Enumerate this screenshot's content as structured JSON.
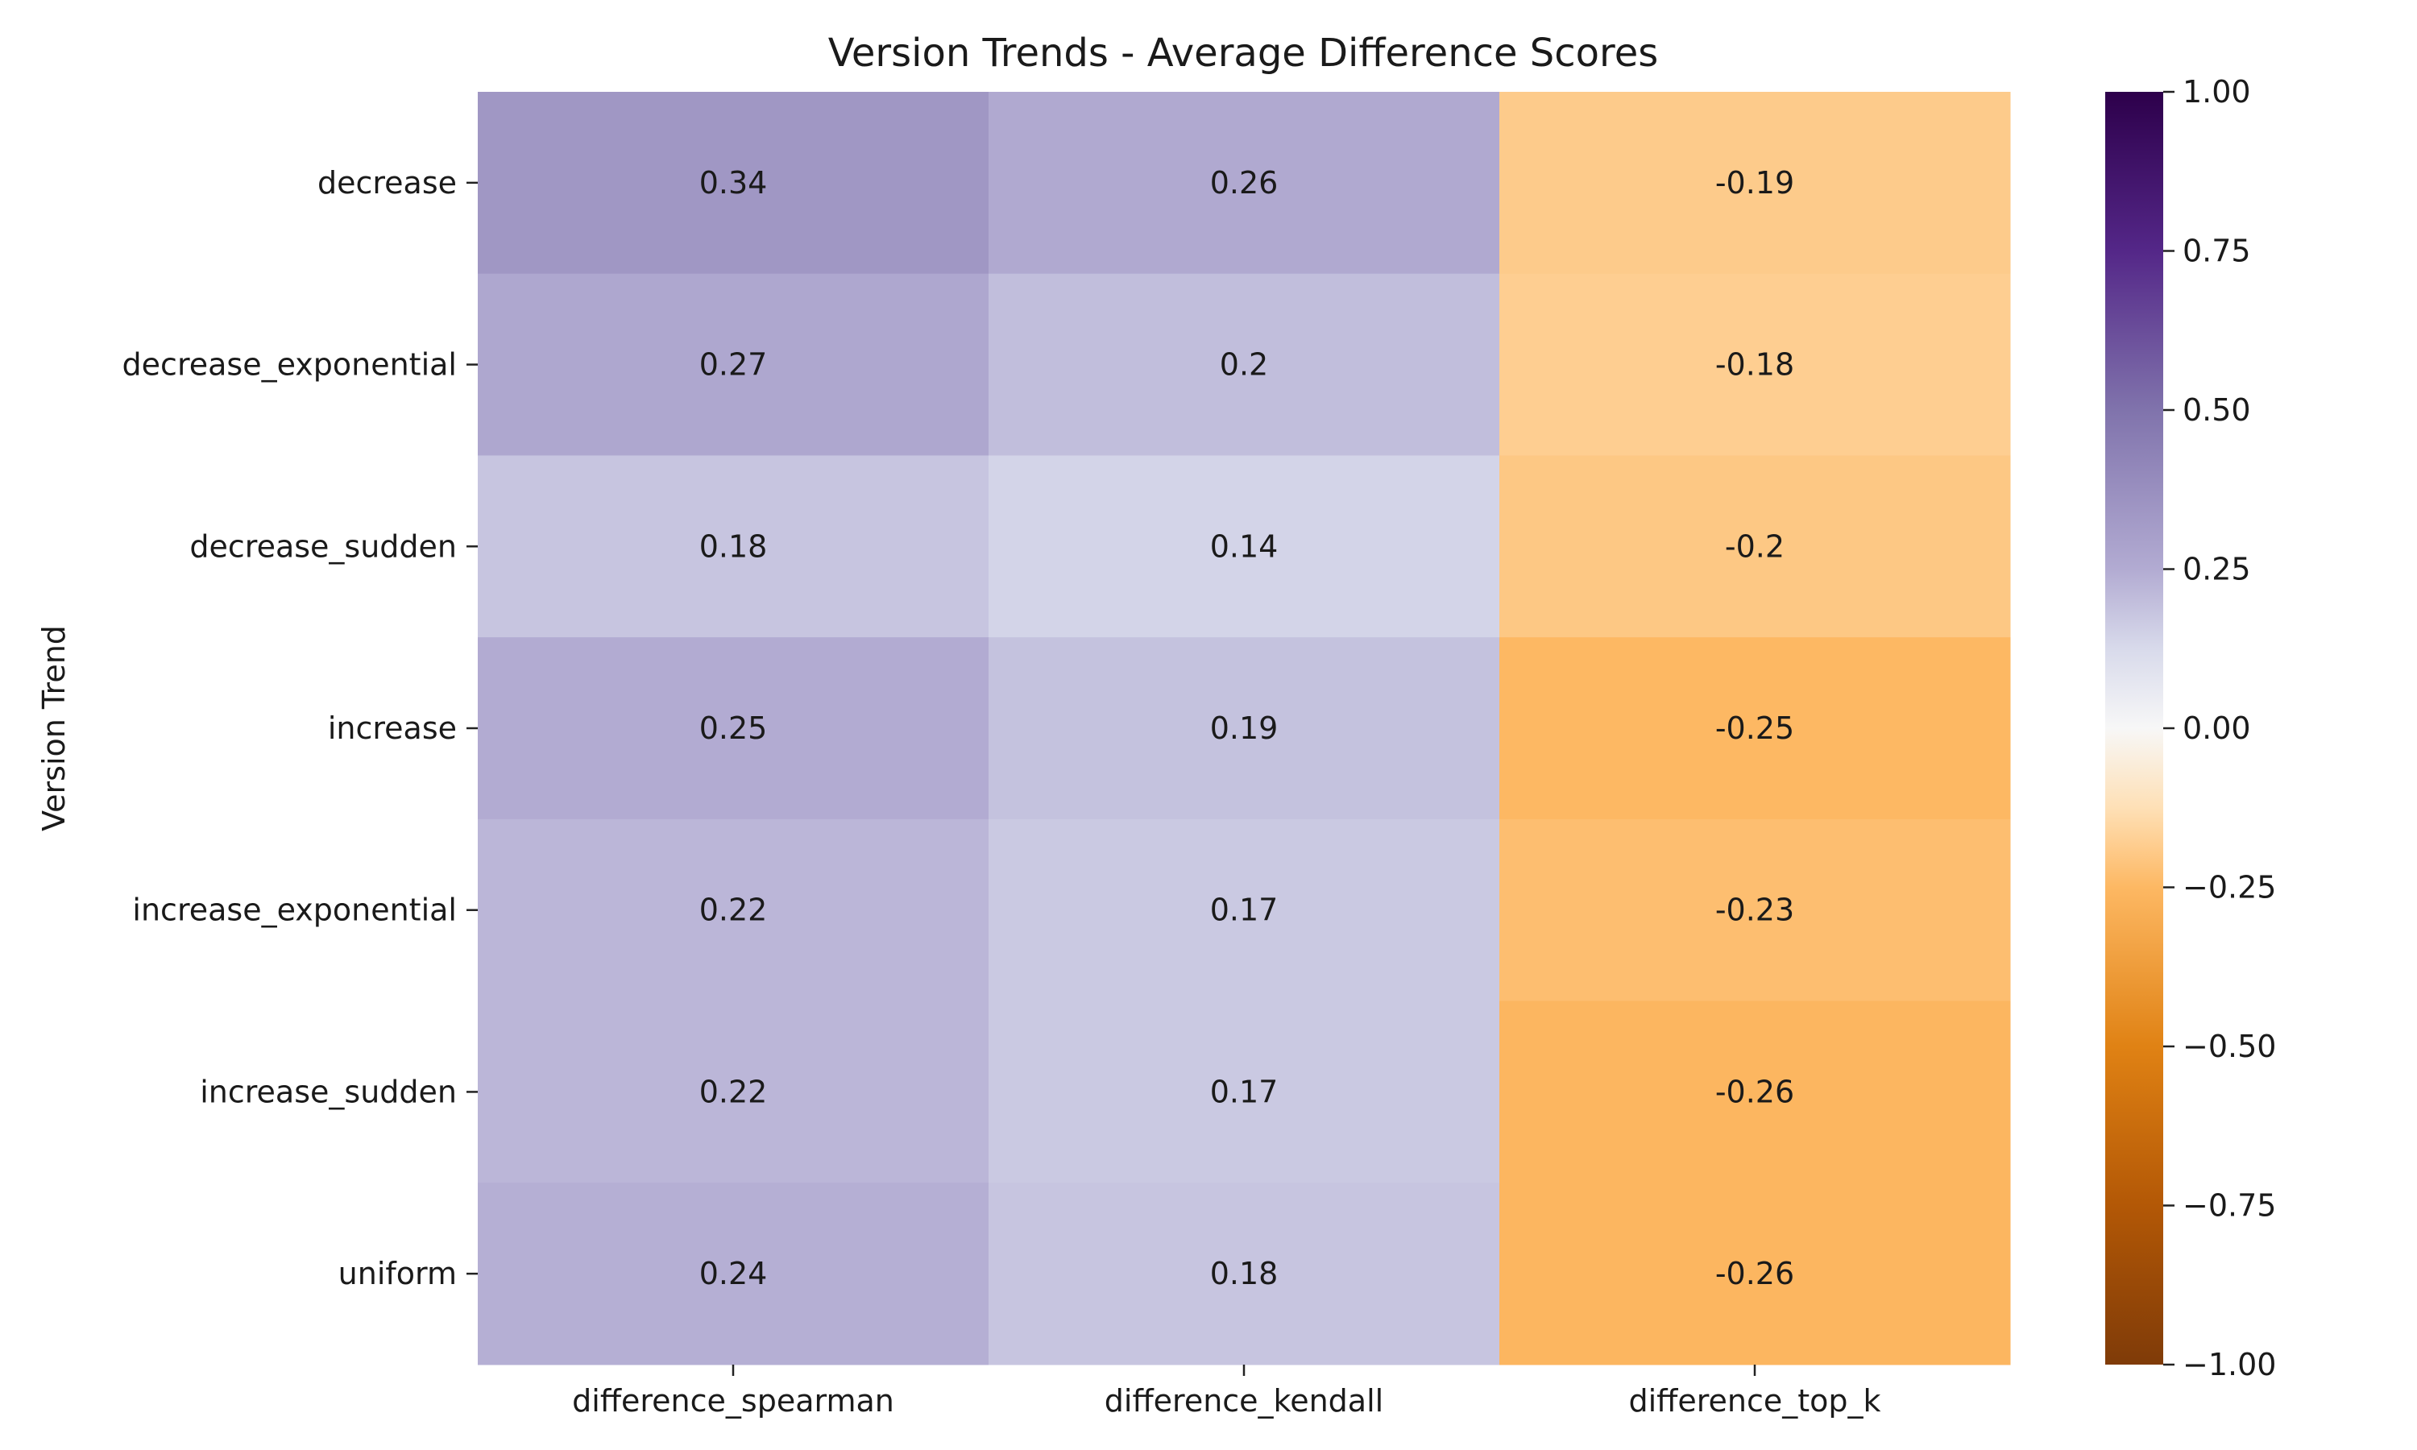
{
  "chart_data": {
    "type": "heatmap",
    "title": "Version Trends - Average Difference Scores",
    "ylabel": "Version Trend",
    "xlabel": "",
    "rows": [
      "decrease",
      "decrease_exponential",
      "decrease_sudden",
      "increase",
      "increase_exponential",
      "increase_sudden",
      "uniform"
    ],
    "columns": [
      "difference_spearman",
      "difference_kendall",
      "difference_top_k"
    ],
    "values": [
      [
        0.34,
        0.26,
        -0.19
      ],
      [
        0.27,
        0.2,
        -0.18
      ],
      [
        0.18,
        0.14,
        -0.2
      ],
      [
        0.25,
        0.19,
        -0.25
      ],
      [
        0.22,
        0.17,
        -0.23
      ],
      [
        0.22,
        0.17,
        -0.26
      ],
      [
        0.24,
        0.18,
        -0.26
      ]
    ],
    "value_labels": [
      [
        "0.34",
        "0.26",
        "-0.19"
      ],
      [
        "0.27",
        "0.2",
        "-0.18"
      ],
      [
        "0.18",
        "0.14",
        "-0.2"
      ],
      [
        "0.25",
        "0.19",
        "-0.25"
      ],
      [
        "0.22",
        "0.17",
        "-0.23"
      ],
      [
        "0.22",
        "0.17",
        "-0.26"
      ],
      [
        "0.24",
        "0.18",
        "-0.26"
      ]
    ],
    "colormap": "PuOr",
    "vmin": -1.0,
    "vmax": 1.0,
    "colorbar_ticks": [
      1.0,
      0.75,
      0.5,
      0.25,
      0.0,
      -0.25,
      -0.5,
      -0.75,
      -1.0
    ],
    "colorbar_tick_labels": [
      "1.00",
      "0.75",
      "0.50",
      "0.25",
      "0.00",
      "−0.25",
      "−0.50",
      "−0.75",
      "−1.00"
    ],
    "colors": {
      "minus_1": "#7f3b08",
      "minus_0_75": "#b35806",
      "minus_0_5": "#e08214",
      "minus_0_25": "#fdb863",
      "zero": "#f7f7f7",
      "plus_0_25": "#d8daeb",
      "plus_0_5": "#b2abd2",
      "plus_0_75": "#8073ac",
      "plus_1": "#2d004b"
    }
  }
}
